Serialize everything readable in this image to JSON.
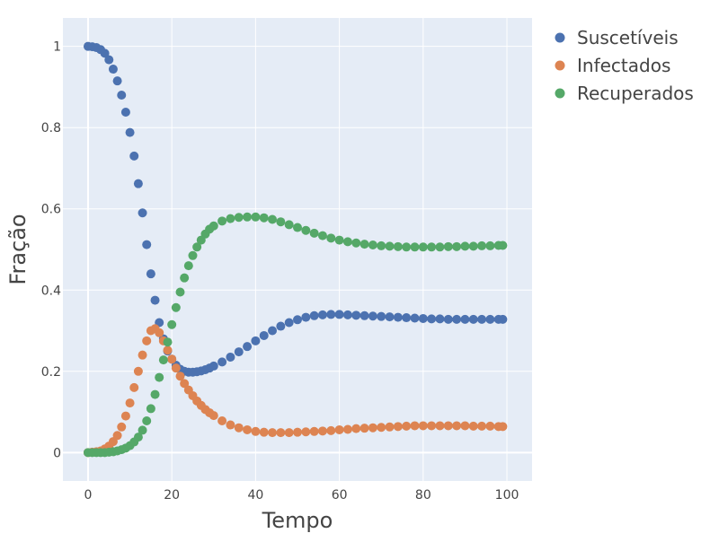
{
  "chart_data": {
    "type": "scatter",
    "xlabel": "Tempo",
    "ylabel": "Fração",
    "xlim": [
      -6,
      106
    ],
    "ylim": [
      -0.07,
      1.07
    ],
    "x_ticks": [
      {
        "value": 0,
        "label": "0"
      },
      {
        "value": 20,
        "label": "20"
      },
      {
        "value": 40,
        "label": "40"
      },
      {
        "value": 60,
        "label": "60"
      },
      {
        "value": 80,
        "label": "80"
      },
      {
        "value": 100,
        "label": "100"
      }
    ],
    "y_ticks": [
      {
        "value": 0,
        "label": "0"
      },
      {
        "value": 0.2,
        "label": "0.2"
      },
      {
        "value": 0.4,
        "label": "0.4"
      },
      {
        "value": 0.6,
        "label": "0.6"
      },
      {
        "value": 0.8,
        "label": "0.8"
      },
      {
        "value": 1.0,
        "label": "1"
      }
    ],
    "grid": true,
    "legend_position": "top-right outside plot",
    "plot_background": "#e5ecf6",
    "series": [
      {
        "name": "Suscetíveis",
        "color": "#4c72b0",
        "x": [
          0,
          1,
          2,
          3,
          4,
          5,
          6,
          7,
          8,
          9,
          10,
          11,
          12,
          13,
          14,
          15,
          16,
          17,
          18,
          19,
          20,
          21,
          22,
          23,
          24,
          25,
          26,
          27,
          28,
          29,
          30,
          32,
          34,
          36,
          38,
          40,
          42,
          44,
          46,
          48,
          50,
          52,
          54,
          56,
          58,
          60,
          62,
          64,
          66,
          68,
          70,
          72,
          74,
          76,
          78,
          80,
          82,
          84,
          86,
          88,
          90,
          92,
          94,
          96,
          98,
          99
        ],
        "y": [
          1.0,
          0.999,
          0.997,
          0.992,
          0.983,
          0.967,
          0.944,
          0.915,
          0.88,
          0.838,
          0.788,
          0.73,
          0.662,
          0.59,
          0.512,
          0.44,
          0.375,
          0.32,
          0.28,
          0.25,
          0.23,
          0.215,
          0.205,
          0.2,
          0.198,
          0.198,
          0.199,
          0.201,
          0.204,
          0.208,
          0.213,
          0.223,
          0.235,
          0.248,
          0.261,
          0.275,
          0.288,
          0.3,
          0.311,
          0.32,
          0.327,
          0.333,
          0.337,
          0.339,
          0.34,
          0.34,
          0.339,
          0.338,
          0.337,
          0.336,
          0.335,
          0.334,
          0.333,
          0.332,
          0.331,
          0.33,
          0.329,
          0.329,
          0.328,
          0.328,
          0.328,
          0.328,
          0.328,
          0.328,
          0.328,
          0.328
        ]
      },
      {
        "name": "Infectados",
        "color": "#dd8452",
        "x": [
          0,
          1,
          2,
          3,
          4,
          5,
          6,
          7,
          8,
          9,
          10,
          11,
          12,
          13,
          14,
          15,
          16,
          17,
          18,
          19,
          20,
          21,
          22,
          23,
          24,
          25,
          26,
          27,
          28,
          29,
          30,
          32,
          34,
          36,
          38,
          40,
          42,
          44,
          46,
          48,
          50,
          52,
          54,
          56,
          58,
          60,
          62,
          64,
          66,
          68,
          70,
          72,
          74,
          76,
          78,
          80,
          82,
          84,
          86,
          88,
          90,
          92,
          94,
          96,
          98,
          99
        ],
        "y": [
          0.0,
          0.001,
          0.002,
          0.004,
          0.009,
          0.016,
          0.027,
          0.042,
          0.063,
          0.09,
          0.122,
          0.16,
          0.2,
          0.24,
          0.275,
          0.3,
          0.305,
          0.295,
          0.275,
          0.252,
          0.23,
          0.208,
          0.188,
          0.17,
          0.154,
          0.14,
          0.127,
          0.116,
          0.106,
          0.098,
          0.091,
          0.078,
          0.068,
          0.061,
          0.056,
          0.052,
          0.05,
          0.049,
          0.049,
          0.049,
          0.05,
          0.051,
          0.052,
          0.053,
          0.054,
          0.056,
          0.057,
          0.059,
          0.06,
          0.061,
          0.062,
          0.063,
          0.064,
          0.065,
          0.066,
          0.066,
          0.066,
          0.066,
          0.066,
          0.066,
          0.066,
          0.065,
          0.065,
          0.065,
          0.064,
          0.064
        ]
      },
      {
        "name": "Recuperados",
        "color": "#55a868",
        "x": [
          0,
          1,
          2,
          3,
          4,
          5,
          6,
          7,
          8,
          9,
          10,
          11,
          12,
          13,
          14,
          15,
          16,
          17,
          18,
          19,
          20,
          21,
          22,
          23,
          24,
          25,
          26,
          27,
          28,
          29,
          30,
          32,
          34,
          36,
          38,
          40,
          42,
          44,
          46,
          48,
          50,
          52,
          54,
          56,
          58,
          60,
          62,
          64,
          66,
          68,
          70,
          72,
          74,
          76,
          78,
          80,
          82,
          84,
          86,
          88,
          90,
          92,
          94,
          96,
          98,
          99
        ],
        "y": [
          0.0,
          0.0,
          0.0,
          0.0,
          0.0,
          0.001,
          0.002,
          0.004,
          0.007,
          0.011,
          0.017,
          0.026,
          0.038,
          0.055,
          0.078,
          0.108,
          0.143,
          0.185,
          0.228,
          0.272,
          0.315,
          0.357,
          0.395,
          0.43,
          0.46,
          0.485,
          0.506,
          0.523,
          0.538,
          0.55,
          0.558,
          0.57,
          0.576,
          0.579,
          0.58,
          0.58,
          0.578,
          0.574,
          0.568,
          0.561,
          0.554,
          0.547,
          0.54,
          0.534,
          0.528,
          0.523,
          0.519,
          0.516,
          0.513,
          0.511,
          0.509,
          0.508,
          0.507,
          0.506,
          0.506,
          0.506,
          0.506,
          0.506,
          0.507,
          0.507,
          0.508,
          0.508,
          0.509,
          0.509,
          0.51,
          0.51
        ]
      }
    ]
  }
}
